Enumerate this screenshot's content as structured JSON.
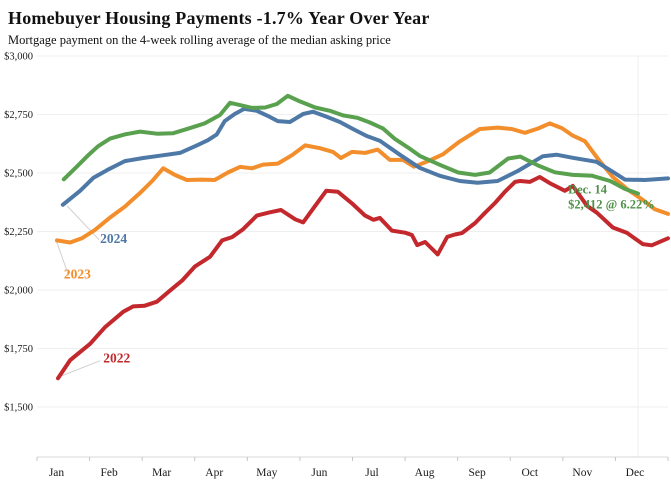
{
  "header": {
    "title": "Homebuyer Housing Payments -1.7% Year Over Year",
    "subtitle": "Mortgage payment on the 4-week rolling average of the median asking price"
  },
  "chart_data": {
    "type": "line",
    "title": "Homebuyer Housing Payments -1.7% Year Over Year",
    "subtitle": "Mortgage payment on the 4-week rolling average of the median asking price",
    "grid": true,
    "legend_position": "inline-labels",
    "x_axis": {
      "tick_labels": [
        "Jan",
        "Feb",
        "Mar",
        "Apr",
        "May",
        "Jun",
        "Jul",
        "Aug",
        "Sep",
        "Oct",
        "Nov",
        "Dec"
      ],
      "range_months": [
        0,
        12
      ]
    },
    "y_axis": {
      "min": 1500,
      "max": 3000,
      "step": 250,
      "tick_labels": [
        "$3,000",
        "$2,750",
        "$2,500",
        "$2,250",
        "$2,000",
        "$1,750",
        "$1,500"
      ],
      "unit": "USD per month"
    },
    "reference_month": 11.43,
    "colors": {
      "red_2022": "#c3282d",
      "orange_2023": "#f28e2b",
      "blue_2024": "#4e79a7",
      "green_latest": "#59a14f",
      "grid": "#efefef",
      "axis_line": "#d8d8d8",
      "tick": "#c4c4c4",
      "leader": "#d0d0d0",
      "axis_text": "#1a1a1a"
    },
    "series": [
      {
        "id": "2022",
        "color": "#c3282d",
        "points": [
          [
            0.4,
            1623
          ],
          [
            0.63,
            1700
          ],
          [
            1.01,
            1770
          ],
          [
            1.29,
            1840
          ],
          [
            1.64,
            1907
          ],
          [
            1.83,
            1930
          ],
          [
            2.05,
            1933
          ],
          [
            2.28,
            1950
          ],
          [
            2.57,
            2005
          ],
          [
            2.76,
            2040
          ],
          [
            3.0,
            2100
          ],
          [
            3.29,
            2142
          ],
          [
            3.52,
            2212
          ],
          [
            3.71,
            2226
          ],
          [
            3.92,
            2260
          ],
          [
            4.18,
            2318
          ],
          [
            4.43,
            2332
          ],
          [
            4.64,
            2342
          ],
          [
            4.91,
            2302
          ],
          [
            5.06,
            2289
          ],
          [
            5.29,
            2360
          ],
          [
            5.5,
            2424
          ],
          [
            5.72,
            2420
          ],
          [
            5.99,
            2370
          ],
          [
            6.24,
            2318
          ],
          [
            6.4,
            2300
          ],
          [
            6.52,
            2308
          ],
          [
            6.75,
            2254
          ],
          [
            7.0,
            2245
          ],
          [
            7.13,
            2235
          ],
          [
            7.23,
            2192
          ],
          [
            7.38,
            2205
          ],
          [
            7.62,
            2152
          ],
          [
            7.8,
            2227
          ],
          [
            7.95,
            2237
          ],
          [
            8.08,
            2243
          ],
          [
            8.33,
            2286
          ],
          [
            8.52,
            2330
          ],
          [
            8.71,
            2372
          ],
          [
            8.9,
            2420
          ],
          [
            9.09,
            2462
          ],
          [
            9.19,
            2466
          ],
          [
            9.37,
            2462
          ],
          [
            9.56,
            2483
          ],
          [
            9.75,
            2457
          ],
          [
            10.04,
            2424
          ],
          [
            10.19,
            2445
          ],
          [
            10.46,
            2360
          ],
          [
            10.65,
            2330
          ],
          [
            10.95,
            2267
          ],
          [
            11.22,
            2244
          ],
          [
            11.52,
            2196
          ],
          [
            11.69,
            2191
          ],
          [
            12.0,
            2221
          ]
        ]
      },
      {
        "id": "2023",
        "color": "#f28e2b",
        "points": [
          [
            0.38,
            2212
          ],
          [
            0.63,
            2203
          ],
          [
            0.86,
            2222
          ],
          [
            1.1,
            2256
          ],
          [
            1.39,
            2310
          ],
          [
            1.67,
            2356
          ],
          [
            1.96,
            2415
          ],
          [
            2.19,
            2466
          ],
          [
            2.4,
            2520
          ],
          [
            2.62,
            2492
          ],
          [
            2.85,
            2470
          ],
          [
            3.14,
            2472
          ],
          [
            3.38,
            2470
          ],
          [
            3.63,
            2502
          ],
          [
            3.86,
            2526
          ],
          [
            4.09,
            2520
          ],
          [
            4.3,
            2536
          ],
          [
            4.58,
            2540
          ],
          [
            4.85,
            2576
          ],
          [
            5.1,
            2618
          ],
          [
            5.38,
            2606
          ],
          [
            5.63,
            2590
          ],
          [
            5.78,
            2564
          ],
          [
            5.99,
            2590
          ],
          [
            6.24,
            2586
          ],
          [
            6.48,
            2600
          ],
          [
            6.71,
            2556
          ],
          [
            6.96,
            2556
          ],
          [
            7.17,
            2527
          ],
          [
            7.43,
            2550
          ],
          [
            7.72,
            2580
          ],
          [
            8.04,
            2635
          ],
          [
            8.42,
            2688
          ],
          [
            8.76,
            2694
          ],
          [
            9.03,
            2688
          ],
          [
            9.28,
            2672
          ],
          [
            9.53,
            2690
          ],
          [
            9.75,
            2712
          ],
          [
            9.98,
            2692
          ],
          [
            10.19,
            2660
          ],
          [
            10.42,
            2636
          ],
          [
            10.67,
            2560
          ],
          [
            10.95,
            2483
          ],
          [
            11.24,
            2428
          ],
          [
            11.52,
            2385
          ],
          [
            11.75,
            2345
          ],
          [
            12.0,
            2325
          ]
        ]
      },
      {
        "id": "2024",
        "color": "#4e79a7",
        "points": [
          [
            0.49,
            2364
          ],
          [
            0.82,
            2424
          ],
          [
            1.07,
            2479
          ],
          [
            1.33,
            2512
          ],
          [
            1.67,
            2551
          ],
          [
            2.02,
            2564
          ],
          [
            2.34,
            2574
          ],
          [
            2.72,
            2586
          ],
          [
            3.06,
            2620
          ],
          [
            3.25,
            2640
          ],
          [
            3.42,
            2665
          ],
          [
            3.57,
            2722
          ],
          [
            3.76,
            2752
          ],
          [
            3.94,
            2774
          ],
          [
            4.18,
            2766
          ],
          [
            4.39,
            2744
          ],
          [
            4.58,
            2722
          ],
          [
            4.81,
            2718
          ],
          [
            5.06,
            2752
          ],
          [
            5.25,
            2762
          ],
          [
            5.51,
            2740
          ],
          [
            5.76,
            2718
          ],
          [
            6.01,
            2688
          ],
          [
            6.27,
            2658
          ],
          [
            6.52,
            2638
          ],
          [
            6.9,
            2578
          ],
          [
            7.28,
            2522
          ],
          [
            7.66,
            2488
          ],
          [
            8.04,
            2466
          ],
          [
            8.38,
            2458
          ],
          [
            8.76,
            2466
          ],
          [
            9.14,
            2508
          ],
          [
            9.62,
            2572
          ],
          [
            9.88,
            2578
          ],
          [
            10.19,
            2565
          ],
          [
            10.64,
            2548
          ],
          [
            10.95,
            2505
          ],
          [
            11.18,
            2472
          ],
          [
            11.56,
            2470
          ],
          [
            12.0,
            2477
          ]
        ]
      },
      {
        "id": "latest",
        "color": "#59a14f",
        "points": [
          [
            0.51,
            2473
          ],
          [
            0.76,
            2528
          ],
          [
            0.95,
            2571
          ],
          [
            1.16,
            2614
          ],
          [
            1.39,
            2647
          ],
          [
            1.67,
            2665
          ],
          [
            1.96,
            2677
          ],
          [
            2.28,
            2668
          ],
          [
            2.59,
            2670
          ],
          [
            2.91,
            2692
          ],
          [
            3.19,
            2712
          ],
          [
            3.48,
            2748
          ],
          [
            3.67,
            2800
          ],
          [
            3.86,
            2790
          ],
          [
            4.09,
            2778
          ],
          [
            4.34,
            2780
          ],
          [
            4.56,
            2795
          ],
          [
            4.77,
            2830
          ],
          [
            5.0,
            2806
          ],
          [
            5.29,
            2780
          ],
          [
            5.57,
            2766
          ],
          [
            5.82,
            2746
          ],
          [
            6.09,
            2736
          ],
          [
            6.33,
            2716
          ],
          [
            6.58,
            2690
          ],
          [
            6.81,
            2645
          ],
          [
            7.05,
            2610
          ],
          [
            7.28,
            2573
          ],
          [
            7.66,
            2535
          ],
          [
            8.01,
            2502
          ],
          [
            8.33,
            2492
          ],
          [
            8.61,
            2502
          ],
          [
            8.96,
            2562
          ],
          [
            9.19,
            2570
          ],
          [
            9.53,
            2532
          ],
          [
            9.85,
            2503
          ],
          [
            10.19,
            2492
          ],
          [
            10.56,
            2488
          ],
          [
            10.9,
            2466
          ],
          [
            11.18,
            2432
          ],
          [
            11.43,
            2412
          ]
        ]
      }
    ],
    "year_labels": [
      {
        "series": "2024",
        "text": "2024",
        "color": "#4e79a7",
        "t": 1.2,
        "v": 2200,
        "leader": {
          "from": [
            0.57,
            2360
          ],
          "to": [
            1.18,
            2215
          ]
        }
      },
      {
        "series": "2023",
        "text": "2023",
        "color": "#f28e2b",
        "t": 0.51,
        "v": 2050,
        "leader": {
          "from": [
            0.36,
            2215
          ],
          "to": [
            0.6,
            2062
          ]
        }
      },
      {
        "series": "2022",
        "text": "2022",
        "color": "#c3282d",
        "t": 1.26,
        "v": 1690,
        "leader": {
          "from": [
            0.48,
            1634
          ],
          "to": [
            1.2,
            1698
          ]
        }
      }
    ],
    "annotation": {
      "series": "latest",
      "lines": [
        "Dec. 14",
        "$2,412 @ 6.22%"
      ],
      "color": "#4e9147",
      "t": 10.1,
      "v": 2430,
      "value_usd": 2412,
      "rate_pct": 6.22
    }
  }
}
